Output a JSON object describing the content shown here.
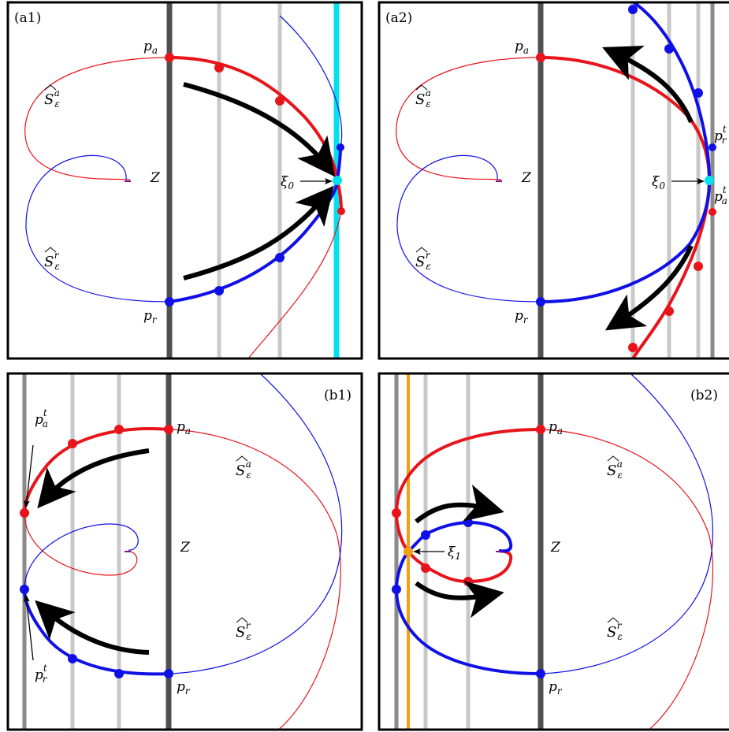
{
  "colors": {
    "attracting": "#e8141b",
    "repelling": "#1010e6",
    "axis": "#505050",
    "section_light": "#c8c8c8",
    "section_mid": "#8a8a8a",
    "highlight_cyan": "#00e0ee",
    "highlight_orange": "#f0a010",
    "arrow": "#000000"
  },
  "panels": {
    "a1": {
      "tag": "(a1)",
      "z": "Z",
      "pa": "p",
      "pa_sub": "a",
      "pr": "p",
      "pr_sub": "r",
      "sa": "S",
      "sa_sub": "ε",
      "sa_sup": "a",
      "sr": "S",
      "sr_sub": "ε",
      "sr_sup": "r",
      "xi": "ξ",
      "xi_sub": "0"
    },
    "a2": {
      "tag": "(a2)",
      "z": "Z",
      "pa": "p",
      "pa_sub": "a",
      "pr": "p",
      "pr_sub": "r",
      "sa": "S",
      "sa_sub": "ε",
      "sa_sup": "a",
      "sr": "S",
      "sr_sub": "ε",
      "sr_sup": "r",
      "xi": "ξ",
      "xi_sub": "0",
      "prt": "p",
      "prt_sup": "t",
      "prt_sub": "r",
      "pat": "p",
      "pat_sup": "t",
      "pat_sub": "a"
    },
    "b1": {
      "tag": "(b1)",
      "z": "Z",
      "pa": "p",
      "pa_sub": "a",
      "pr": "p",
      "pr_sub": "r",
      "sa": "S",
      "sa_sub": "ε",
      "sa_sup": "a",
      "sr": "S",
      "sr_sub": "ε",
      "sr_sup": "r",
      "pat": "p",
      "pat_sup": "t",
      "pat_sub": "a",
      "prt": "p",
      "prt_sup": "t",
      "prt_sub": "r"
    },
    "b2": {
      "tag": "(b2)",
      "z": "Z",
      "pa": "p",
      "pa_sub": "a",
      "pr": "p",
      "pr_sub": "r",
      "sa": "S",
      "sa_sub": "ε",
      "sa_sup": "a",
      "sr": "S",
      "sr_sub": "ε",
      "sr_sup": "r",
      "xi": "ξ",
      "xi_sub": "1"
    }
  }
}
